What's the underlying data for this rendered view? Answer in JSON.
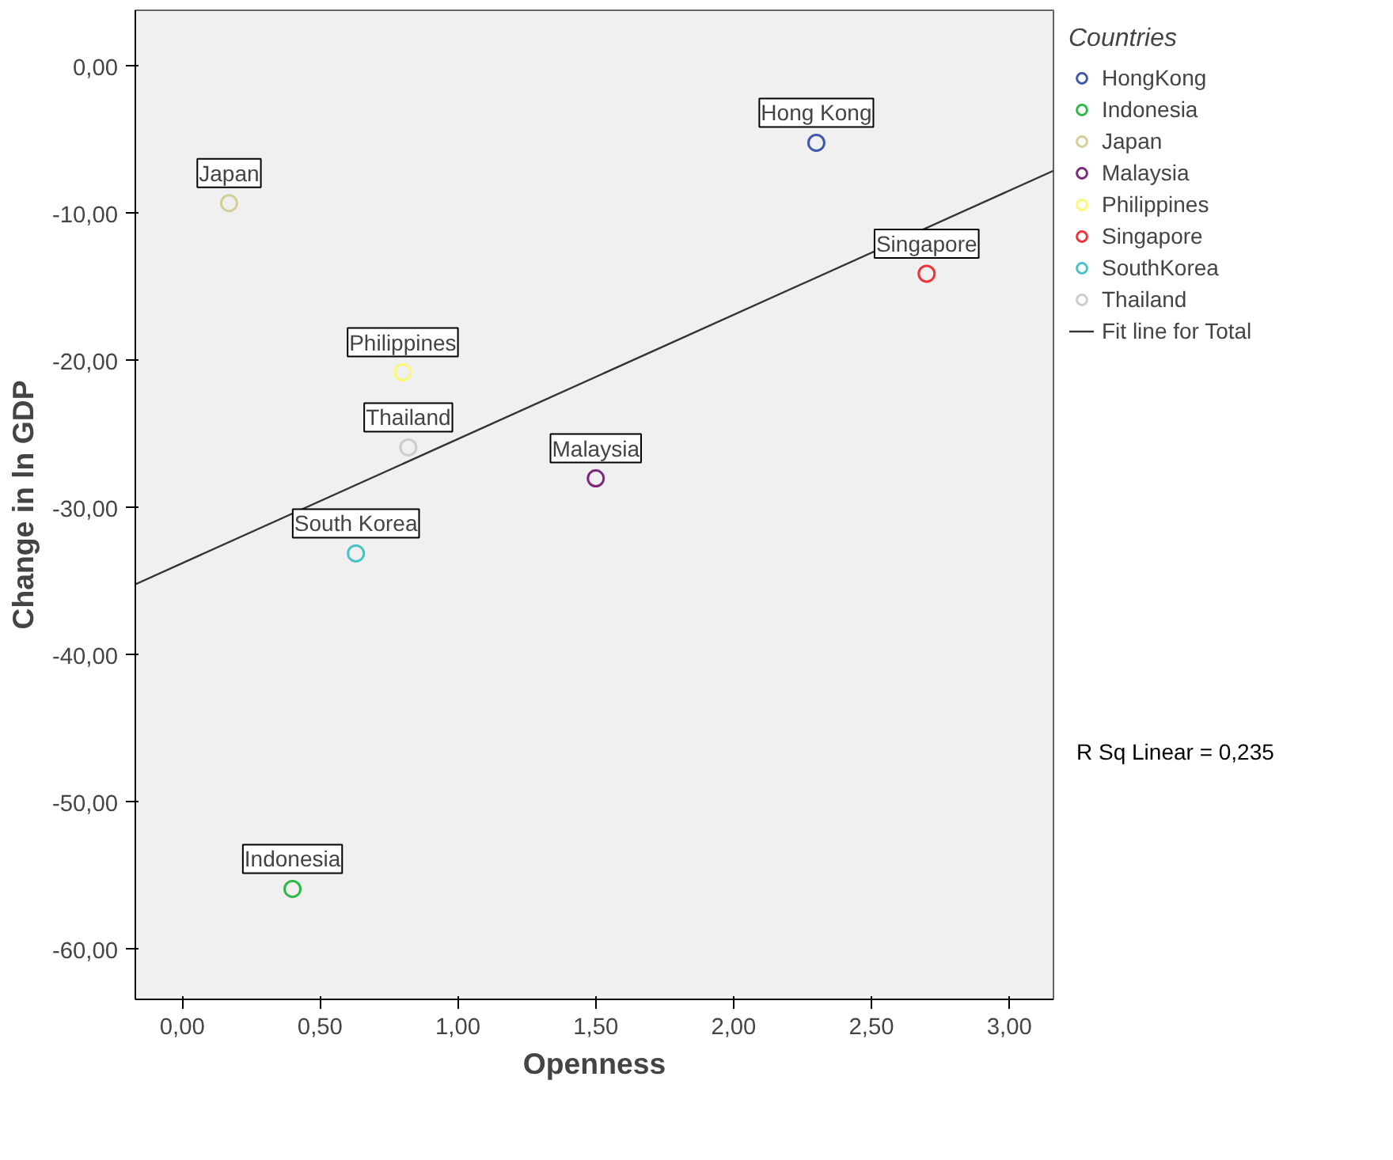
{
  "chart_data": {
    "type": "scatter",
    "xlabel": "Openness",
    "ylabel": "Change in ln GDP",
    "legend_title": "Countries",
    "xlim": [
      -0.17,
      3.16
    ],
    "ylim": [
      -63.4,
      3.8
    ],
    "xticks": [
      {
        "value": 0,
        "label": "0,00"
      },
      {
        "value": 0.5,
        "label": "0,50"
      },
      {
        "value": 1,
        "label": "1,00"
      },
      {
        "value": 1.5,
        "label": "1,50"
      },
      {
        "value": 2,
        "label": "2,00"
      },
      {
        "value": 2.5,
        "label": "2,50"
      },
      {
        "value": 3,
        "label": "3,00"
      }
    ],
    "yticks": [
      {
        "value": 0,
        "label": "0,00"
      },
      {
        "value": -10,
        "label": "-10,00"
      },
      {
        "value": -20,
        "label": "-20,00"
      },
      {
        "value": -30,
        "label": "-30,00"
      },
      {
        "value": -40,
        "label": "-40,00"
      },
      {
        "value": -50,
        "label": "-50,00"
      },
      {
        "value": -60,
        "label": "-60,00"
      }
    ],
    "grid": false,
    "legend": "right",
    "marker": "circle",
    "series": [
      {
        "name": "HongKong",
        "color": "#3e58ac",
        "x": [
          2.3
        ],
        "values": [
          -5.2
        ]
      },
      {
        "name": "Indonesia",
        "color": "#2eb848",
        "x": [
          0.4
        ],
        "values": [
          -55.9
        ]
      },
      {
        "name": "Japan",
        "color": "#d3ce97",
        "x": [
          0.17
        ],
        "values": [
          -9.3
        ]
      },
      {
        "name": "Malaysia",
        "color": "#7c287d",
        "x": [
          1.5
        ],
        "values": [
          -28.0
        ]
      },
      {
        "name": "Philippines",
        "color": "#fbf873",
        "x": [
          0.8
        ],
        "values": [
          -20.8
        ]
      },
      {
        "name": "Singapore",
        "color": "#ef3338",
        "x": [
          2.7
        ],
        "values": [
          -14.1
        ]
      },
      {
        "name": "SouthKorea",
        "color": "#48c2c5",
        "x": [
          0.63
        ],
        "values": [
          -33.1
        ]
      },
      {
        "name": "Thailand",
        "color": "#cccccc",
        "x": [
          0.82
        ],
        "values": [
          -25.9
        ]
      },
      {
        "name": "Fit line for Total",
        "type": "line",
        "color": "#333333",
        "marker": "none",
        "x": [
          -0.17,
          3.16
        ],
        "values": [
          -35.2,
          -7.1
        ]
      }
    ],
    "annotations": [
      {
        "text": "Hong Kong",
        "x": 2.3,
        "y": -5.2
      },
      {
        "text": "Indonesia",
        "x": 0.4,
        "y": -55.9
      },
      {
        "text": "Japan",
        "x": 0.17,
        "y": -9.3
      },
      {
        "text": "Malaysia",
        "x": 1.5,
        "y": -28.0
      },
      {
        "text": "Philippines",
        "x": 0.8,
        "y": -20.8
      },
      {
        "text": "Singapore",
        "x": 2.7,
        "y": -14.1
      },
      {
        "text": "South Korea",
        "x": 0.63,
        "y": -33.1
      },
      {
        "text": "Thailand",
        "x": 0.82,
        "y": -25.9
      },
      "R Sq Linear = 0,235"
    ]
  }
}
